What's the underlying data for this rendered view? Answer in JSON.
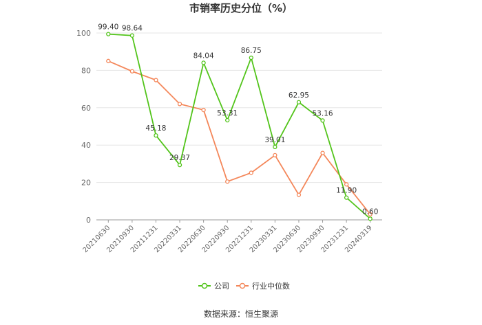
{
  "chart_data": {
    "type": "line",
    "title": "市销率历史分位（%）",
    "categories": [
      "20210630",
      "20210930",
      "20211231",
      "20220331",
      "20220630",
      "20220930",
      "20221231",
      "20230331",
      "20230630",
      "20230930",
      "20231231",
      "20240319"
    ],
    "ylim": [
      0,
      100
    ],
    "yticks": [
      0,
      20,
      40,
      60,
      80,
      100
    ],
    "grid": true,
    "legend_position": "bottom",
    "series": [
      {
        "name": "公司",
        "color": "#52c41a",
        "values": [
          99.4,
          98.64,
          45.18,
          29.37,
          84.04,
          53.31,
          86.75,
          39.01,
          62.95,
          53.16,
          11.9,
          0.6
        ],
        "labels": [
          "99.40",
          "98.64",
          "45.18",
          "29.37",
          "84.04",
          "53.31",
          "86.75",
          "39.01",
          "62.95",
          "53.16",
          "11.90",
          "0.60"
        ]
      },
      {
        "name": "行业中位数",
        "color": "#f4875a",
        "values": [
          85.0,
          79.5,
          74.8,
          62.0,
          58.8,
          20.5,
          25.2,
          34.6,
          13.4,
          35.8,
          19.0,
          3.0
        ]
      }
    ]
  },
  "source_text": "数据来源：恒生聚源"
}
